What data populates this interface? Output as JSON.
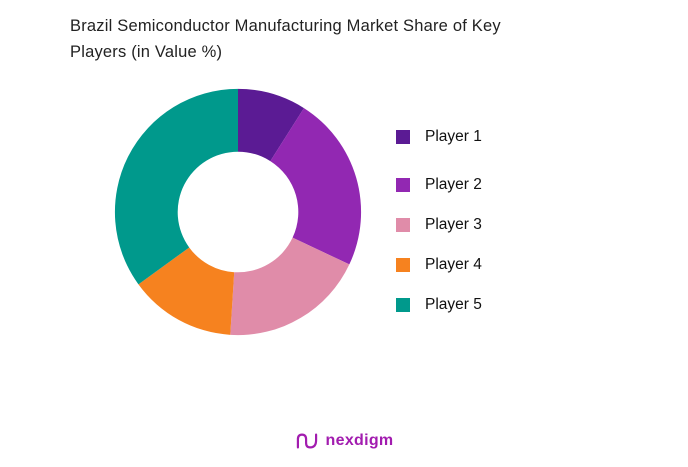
{
  "title": {
    "line1": "Brazil Semiconductor Manufacturing Market Share of Key",
    "line2": "Players (in Value %)"
  },
  "chart_data": {
    "type": "pie",
    "subtype": "donut",
    "title": "Brazil Semiconductor Manufacturing Market Share of Key Players (in Value %)",
    "categories": [
      "Player 1",
      "Player 2",
      "Player 3",
      "Player 4",
      "Player 5"
    ],
    "values": [
      9,
      23,
      19,
      14,
      35
    ],
    "unit": "percent of value share",
    "colors": [
      "#5B1B94",
      "#9228B2",
      "#E08CA9",
      "#F6821F",
      "#00998C"
    ],
    "start_angle_deg": 0,
    "direction": "clockwise",
    "inner_radius_ratio": 0.49,
    "legend_position": "right",
    "data_labels": "none"
  },
  "footer": {
    "brand": "nexdigm",
    "brand_color": "#A21CAF"
  }
}
